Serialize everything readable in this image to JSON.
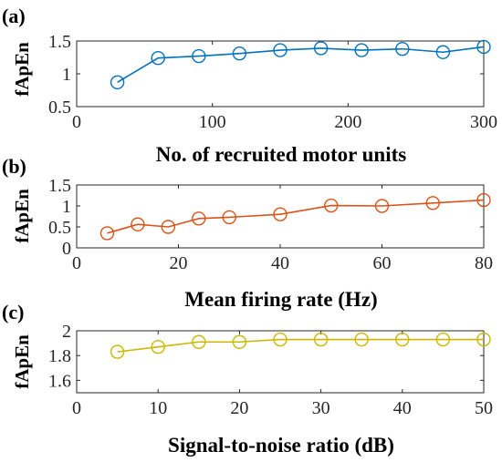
{
  "chart_data": [
    {
      "panel_label": "(a)",
      "type": "line",
      "xlabel": "No. of recruited motor units",
      "ylabel": "fApEn",
      "xlim": [
        0,
        300
      ],
      "ylim": [
        0.5,
        1.5
      ],
      "xticks": [
        0,
        100,
        200,
        300
      ],
      "yticks": [
        0.5,
        1,
        1.5
      ],
      "xtick_labels": [
        "0",
        "100",
        "200",
        "300"
      ],
      "ytick_labels": [
        "0.5",
        "1",
        "1.5"
      ],
      "marker": "circle",
      "color": "#0072BD",
      "x": [
        30,
        60,
        90,
        120,
        150,
        180,
        210,
        240,
        270,
        300
      ],
      "y": [
        0.87,
        1.24,
        1.27,
        1.31,
        1.36,
        1.39,
        1.36,
        1.38,
        1.33,
        1.41
      ]
    },
    {
      "panel_label": "(b)",
      "type": "line",
      "xlabel": "Mean firing rate (Hz)",
      "ylabel": "fApEn",
      "xlim": [
        0,
        80
      ],
      "ylim": [
        0,
        1.5
      ],
      "xticks": [
        0,
        20,
        40,
        60,
        80
      ],
      "yticks": [
        0,
        0.5,
        1,
        1.5
      ],
      "xtick_labels": [
        "0",
        "20",
        "40",
        "60",
        "80"
      ],
      "ytick_labels": [
        "0",
        "0.5",
        "1",
        "1.5"
      ],
      "marker": "circle",
      "color": "#D95319",
      "x": [
        6,
        12,
        18,
        24,
        30,
        40,
        50,
        60,
        70,
        80
      ],
      "y": [
        0.35,
        0.56,
        0.5,
        0.7,
        0.73,
        0.8,
        1.01,
        1.0,
        1.07,
        1.14
      ]
    },
    {
      "panel_label": "(c)",
      "type": "line",
      "xlabel": "Signal-to-noise ratio (dB)",
      "ylabel": "fApEn",
      "xlim": [
        0,
        50
      ],
      "ylim": [
        1.5,
        2.0
      ],
      "xticks": [
        0,
        10,
        20,
        30,
        40,
        50
      ],
      "yticks": [
        1.6,
        1.8,
        2
      ],
      "xtick_labels": [
        "0",
        "10",
        "20",
        "30",
        "40",
        "50"
      ],
      "ytick_labels": [
        "1.6",
        "1.8",
        "2"
      ],
      "marker": "circle",
      "color": "#C9B800",
      "x": [
        5,
        10,
        15,
        20,
        25,
        30,
        35,
        40,
        45,
        50
      ],
      "y": [
        1.83,
        1.87,
        1.91,
        1.91,
        1.93,
        1.93,
        1.93,
        1.93,
        1.93,
        1.93
      ]
    }
  ]
}
